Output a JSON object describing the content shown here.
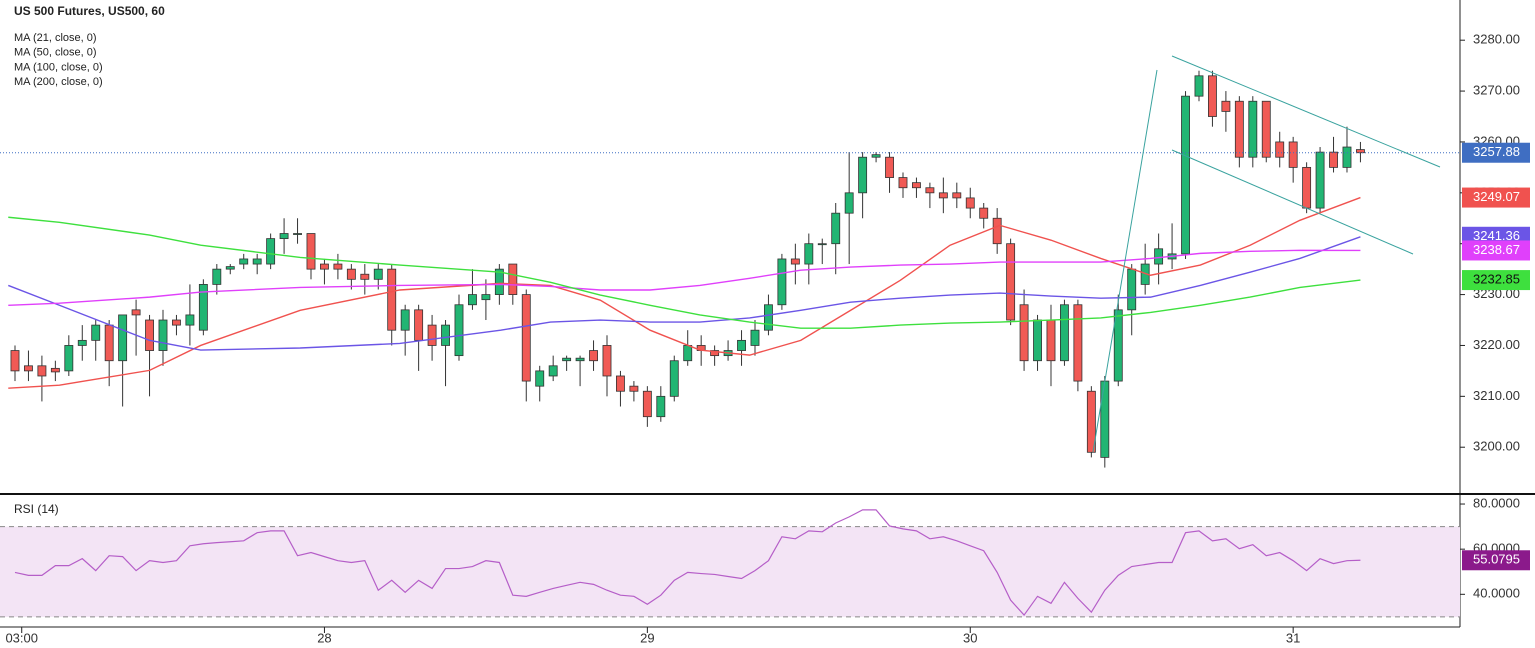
{
  "chart_data": [
    {
      "type": "candlestick",
      "title": "US 500 Futures, US500, 60",
      "up_color": "#22b573",
      "down_color": "#f05a55",
      "last_price_color": "#3f6ec2",
      "xlim": [
        -0.52,
        107.4
      ],
      "ylim": [
        3191,
        3287.9
      ],
      "xticks": [
        {
          "value": 0.5,
          "label": "03:00"
        },
        {
          "value": 23,
          "label": "28"
        },
        {
          "value": 47,
          "label": "29"
        },
        {
          "value": 71,
          "label": "30"
        },
        {
          "value": 95,
          "label": "31"
        }
      ],
      "yticks": [
        {
          "value": 3200,
          "label": "3200.00"
        },
        {
          "value": 3210,
          "label": "3210.00"
        },
        {
          "value": 3220,
          "label": "3220.00"
        },
        {
          "value": 3230,
          "label": "3230.00"
        },
        {
          "value": 3240,
          "label": "3240.00"
        },
        {
          "value": 3250,
          "label": "3250.00"
        },
        {
          "value": 3260,
          "label": "3260.00"
        },
        {
          "value": 3270,
          "label": "3270.00"
        },
        {
          "value": 3280,
          "label": "3280.00"
        }
      ],
      "x": [
        0,
        1,
        2,
        3,
        4,
        5,
        6,
        7,
        8,
        9,
        10,
        11,
        12,
        13,
        14,
        15,
        16,
        17,
        18,
        19,
        20,
        21,
        22,
        23,
        24,
        25,
        26,
        27,
        28,
        29,
        30,
        31,
        32,
        33,
        34,
        35,
        36,
        37,
        38,
        39,
        40,
        41,
        42,
        43,
        44,
        45,
        46,
        47,
        48,
        49,
        50,
        51,
        52,
        53,
        54,
        55,
        56,
        57,
        58,
        59,
        60,
        61,
        62,
        63,
        64,
        65,
        66,
        67,
        68,
        69,
        70,
        71,
        72,
        73,
        74,
        75,
        76,
        77,
        78,
        79,
        80,
        81,
        82,
        83,
        84,
        85,
        86,
        87,
        88,
        89,
        90,
        91,
        92,
        93,
        94,
        95,
        96,
        97,
        98,
        99,
        100
      ],
      "open": [
        3219,
        3216,
        3216,
        3215.5,
        3215,
        3220,
        3221,
        3224,
        3217,
        3227,
        3225,
        3219,
        3225,
        3224,
        3223,
        3232,
        3235,
        3236,
        3236,
        3236,
        3241,
        3242,
        3242,
        3236,
        3236,
        3235,
        3234,
        3233,
        3235,
        3223,
        3227,
        3224,
        3220,
        3218,
        3228,
        3229,
        3230,
        3236,
        3230,
        3212,
        3214,
        3217,
        3217,
        3219,
        3220,
        3214,
        3212,
        3211,
        3206,
        3210,
        3217,
        3220,
        3219,
        3218,
        3219,
        3220,
        3223,
        3228,
        3237,
        3236,
        3240,
        3240,
        3246,
        3250,
        3257,
        3257,
        3253,
        3252,
        3251,
        3250,
        3250,
        3249,
        3247,
        3245,
        3240,
        3228,
        3217,
        3225,
        3217,
        3228,
        3211,
        3198,
        3213,
        3227,
        3232,
        3236,
        3237,
        3238,
        3269,
        3273,
        3268,
        3268,
        3257,
        3268,
        3260,
        3260,
        3255,
        3247,
        3258,
        3255,
        3258.5
      ],
      "close": [
        3215,
        3215,
        3214,
        3214.8,
        3220,
        3221,
        3224,
        3217,
        3226,
        3226,
        3219,
        3225,
        3224,
        3226,
        3232,
        3235,
        3235.5,
        3237,
        3237,
        3241,
        3242,
        3242,
        3235,
        3235,
        3235,
        3233,
        3233,
        3235,
        3223,
        3227,
        3221,
        3220,
        3224,
        3228,
        3230,
        3230,
        3235,
        3230,
        3213,
        3215,
        3216,
        3217.5,
        3217.5,
        3217,
        3214,
        3211,
        3211,
        3206,
        3210,
        3217,
        3220,
        3219,
        3218,
        3219,
        3221,
        3223,
        3228,
        3237,
        3236,
        3240,
        3240,
        3246,
        3250,
        3257,
        3257.5,
        3253,
        3251,
        3251,
        3250,
        3249,
        3249,
        3247,
        3245,
        3240,
        3225,
        3217,
        3225,
        3217,
        3228,
        3213,
        3199,
        3213,
        3227,
        3235,
        3236,
        3239,
        3238,
        3269,
        3273,
        3265,
        3266,
        3257,
        3268,
        3257,
        3257,
        3255,
        3247,
        3258,
        3255,
        3259,
        3257.88
      ],
      "high": [
        3220,
        3219,
        3218,
        3217,
        3222,
        3224,
        3225,
        3225,
        3226,
        3229,
        3226,
        3227,
        3226,
        3232,
        3233,
        3236,
        3236,
        3238,
        3238,
        3242,
        3245,
        3245,
        3242,
        3237,
        3238,
        3236,
        3236,
        3236,
        3236,
        3228,
        3228,
        3226,
        3225,
        3230,
        3235,
        3233,
        3236,
        3236,
        3231,
        3216,
        3218,
        3218,
        3218,
        3221,
        3222,
        3215,
        3213,
        3212,
        3212,
        3218,
        3223,
        3222,
        3220,
        3221,
        3223,
        3225,
        3230,
        3238,
        3240,
        3242,
        3241,
        3248,
        3258,
        3258,
        3258,
        3258,
        3254,
        3253,
        3252,
        3253,
        3252,
        3251,
        3248,
        3247,
        3241,
        3231,
        3226,
        3228,
        3229,
        3229,
        3212,
        3214,
        3230,
        3236,
        3240,
        3242,
        3244,
        3270,
        3274,
        3274,
        3270,
        3269,
        3269,
        3268,
        3262,
        3261,
        3256,
        3259,
        3261,
        3263,
        3260
      ],
      "low": [
        3213,
        3213,
        3209,
        3213,
        3214,
        3217,
        3217,
        3212,
        3208,
        3218,
        3210,
        3216,
        3222,
        3220,
        3222,
        3230,
        3234,
        3235,
        3234,
        3235,
        3238,
        3240,
        3233,
        3232,
        3233,
        3231,
        3230,
        3231,
        3220,
        3218,
        3215,
        3217,
        3212,
        3217,
        3227,
        3225,
        3228,
        3228,
        3209,
        3209,
        3213,
        3215,
        3212,
        3215,
        3210,
        3208,
        3209,
        3204,
        3205,
        3209,
        3216,
        3216,
        3216,
        3217,
        3216,
        3218,
        3222,
        3227,
        3232,
        3232,
        3236,
        3234,
        3236,
        3245,
        3256,
        3250,
        3249,
        3249,
        3247,
        3246,
        3247,
        3245,
        3243,
        3238,
        3224,
        3215,
        3215,
        3212,
        3216,
        3211,
        3198,
        3196,
        3212,
        3222,
        3230,
        3232,
        3235,
        3237,
        3268,
        3263,
        3262,
        3255,
        3255,
        3256,
        3255,
        3252,
        3246,
        3246,
        3254,
        3254,
        3256
      ],
      "series": [
        {
          "name": "MA (21, close, 0)",
          "color": "#f0524f",
          "x": [
            -0.5,
            3.3,
            10,
            13.8,
            21.2,
            28.6,
            36.1,
            39.8,
            43.5,
            47.2,
            50.9,
            54.6,
            58.4,
            62.1,
            65.8,
            69.5,
            73.2,
            77,
            80.7,
            84.4,
            88.1,
            91.8,
            95.5,
            100
          ],
          "values": [
            3211.6,
            3212.2,
            3215.1,
            3220,
            3226.9,
            3230.9,
            3232.2,
            3231.8,
            3228.9,
            3223,
            3219.1,
            3218.1,
            3221,
            3226.9,
            3232.8,
            3239.7,
            3243.6,
            3240.7,
            3237.1,
            3233.8,
            3235.8,
            3239.7,
            3244.6,
            3249.07
          ]
        },
        {
          "name": "MA (50, close, 0)",
          "color": "#6b55e6",
          "x": [
            -0.5,
            3.3,
            10,
            13.8,
            21.2,
            28.6,
            36.1,
            39.8,
            43.5,
            47.2,
            50.9,
            54.6,
            58.4,
            62.1,
            65.8,
            69.5,
            73.2,
            77,
            80.7,
            84.4,
            88.1,
            91.8,
            95.5,
            100
          ],
          "values": [
            3231.8,
            3227.9,
            3221,
            3219.1,
            3219.5,
            3220.4,
            3223,
            3224.6,
            3225,
            3224.6,
            3224.6,
            3225.4,
            3226.9,
            3228.5,
            3229.3,
            3229.9,
            3230.3,
            3229.7,
            3229.3,
            3229.5,
            3231.8,
            3234.4,
            3237.1,
            3241.36
          ]
        },
        {
          "name": "MA (100, close, 0)",
          "color": "#e040fb",
          "x": [
            -0.5,
            3.3,
            10,
            13.8,
            21.2,
            28.6,
            36.1,
            39.8,
            43.5,
            47.2,
            50.9,
            54.6,
            58.4,
            62.1,
            65.8,
            69.5,
            73.2,
            77,
            80.7,
            84.4,
            88.1,
            91.8,
            95.5,
            100
          ],
          "values": [
            3227.9,
            3228.3,
            3229.5,
            3230.5,
            3231.4,
            3231.8,
            3232,
            3231.6,
            3230.9,
            3230.9,
            3231.8,
            3233.2,
            3234.8,
            3235.4,
            3235.8,
            3236,
            3236.4,
            3236.4,
            3236.4,
            3237.1,
            3238.1,
            3238.5,
            3238.7,
            3238.67
          ]
        },
        {
          "name": "MA (200, close, 0)",
          "color": "#3ee03e",
          "x": [
            -0.5,
            3.3,
            10,
            13.8,
            21.2,
            28.6,
            36.1,
            39.8,
            43.5,
            47.2,
            50.9,
            54.6,
            58.4,
            62.1,
            65.8,
            69.5,
            73.2,
            77,
            80.7,
            84.4,
            88.1,
            91.8,
            95.5,
            100
          ],
          "values": [
            3245.2,
            3244.2,
            3241.7,
            3239.7,
            3237.3,
            3235.8,
            3234.4,
            3232.4,
            3229.9,
            3227.9,
            3226,
            3224.6,
            3223.4,
            3223.4,
            3224,
            3224.4,
            3224.6,
            3225,
            3225.4,
            3226.5,
            3227.9,
            3229.5,
            3231.4,
            3232.85
          ]
        }
      ]
    },
    {
      "type": "line",
      "title": "RSI (14)",
      "xlim": [
        -0.52,
        107.4
      ],
      "ylim": [
        26.4,
        84
      ],
      "band": [
        30,
        70
      ],
      "band_color": "#f3e4f5",
      "tag_color": "#8b1a8b",
      "yticks": [
        {
          "value": 40,
          "label": "40.0000"
        },
        {
          "value": 60,
          "label": "60.0000"
        },
        {
          "value": 80,
          "label": "80.0000"
        }
      ],
      "series": [
        {
          "name": "RSI (14)",
          "color": "#b55ec8",
          "values": [
            49.7,
            48.4,
            48.4,
            52.7,
            52.7,
            55.8,
            50.5,
            57.1,
            56.7,
            50.5,
            54.9,
            54.1,
            54.9,
            61.5,
            62.4,
            62.9,
            63.3,
            63.7,
            67.3,
            68.1,
            68.1,
            57.1,
            58.5,
            56.7,
            54.9,
            54.1,
            54.9,
            41.8,
            46.2,
            40.9,
            46.2,
            42.6,
            51.4,
            51.4,
            52.3,
            54.9,
            54.1,
            39.6,
            39.1,
            40.9,
            42.6,
            44,
            45.3,
            44.4,
            41.8,
            39.6,
            39.1,
            35.6,
            39.6,
            46.2,
            49.7,
            49.2,
            48.8,
            47.9,
            47,
            50.5,
            54.9,
            65.5,
            64.6,
            68.1,
            67.7,
            71.6,
            74.3,
            77.4,
            77.4,
            70.3,
            69,
            68.1,
            64.6,
            65.5,
            63.7,
            61.5,
            59.3,
            49.7,
            37.4,
            30.8,
            39.1,
            36,
            45.3,
            38.2,
            32.1,
            41.8,
            48.4,
            52.3,
            53.2,
            54.1,
            54.1,
            67.3,
            68.1,
            63.7,
            64.6,
            60.2,
            62,
            57.1,
            58.5,
            54.9,
            50.5,
            55.8,
            53.6,
            54.9,
            55.0795
          ]
        }
      ]
    }
  ]
}
